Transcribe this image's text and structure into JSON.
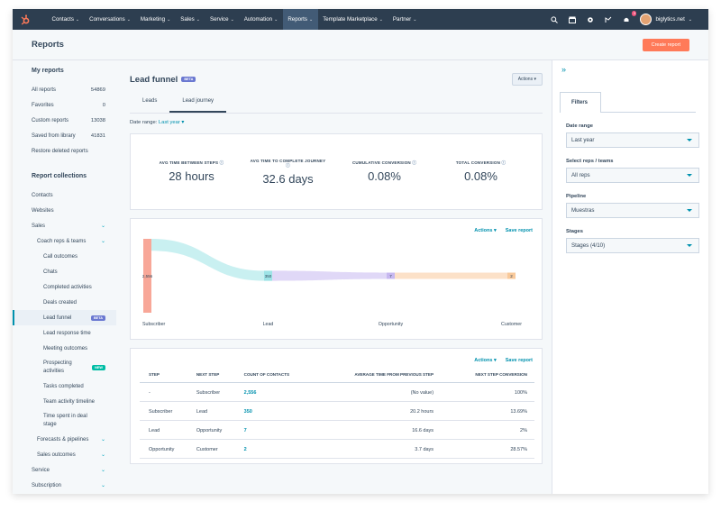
{
  "nav": {
    "items": [
      {
        "label": "Contacts",
        "active": false
      },
      {
        "label": "Conversations",
        "active": false
      },
      {
        "label": "Marketing",
        "active": false
      },
      {
        "label": "Sales",
        "active": false
      },
      {
        "label": "Service",
        "active": false
      },
      {
        "label": "Automation",
        "active": false
      },
      {
        "label": "Reports",
        "active": true
      },
      {
        "label": "Template Marketplace",
        "active": false
      },
      {
        "label": "Partner",
        "active": false
      }
    ],
    "notification_count": "3",
    "account": "biglytics.net"
  },
  "header": {
    "title": "Reports",
    "create_button": "Create report"
  },
  "sidebar": {
    "my_reports_heading": "My reports",
    "my_reports": [
      {
        "label": "All reports",
        "count": "54869"
      },
      {
        "label": "Favorites",
        "count": "0"
      },
      {
        "label": "Custom reports",
        "count": "13038"
      },
      {
        "label": "Saved from library",
        "count": "41831"
      },
      {
        "label": "Restore deleted reports",
        "count": ""
      }
    ],
    "collections_heading": "Report collections",
    "collections": {
      "contacts": "Contacts",
      "websites": "Websites",
      "sales": "Sales",
      "coach": "Coach reps & teams",
      "call_outcomes": "Call outcomes",
      "chats": "Chats",
      "completed_activities": "Completed activities",
      "deals_created": "Deals created",
      "lead_funnel": "Lead funnel",
      "lead_funnel_badge": "BETA",
      "lead_response_time": "Lead response time",
      "meeting_outcomes": "Meeting outcomes",
      "prospecting": "Prospecting activities",
      "prospecting_badge": "NEW",
      "tasks_completed": "Tasks completed",
      "team_activity": "Team activity timeline",
      "time_spent": "Time spent in deal stage",
      "forecasts": "Forecasts & pipelines",
      "sales_outcomes": "Sales outcomes",
      "service": "Service",
      "subscription": "Subscription"
    }
  },
  "main": {
    "title": "Lead funnel",
    "title_badge": "BETA",
    "actions": "Actions",
    "tabs": [
      {
        "label": "Leads",
        "active": false
      },
      {
        "label": "Lead journey",
        "active": true
      }
    ],
    "date_range_label": "Date range:",
    "date_range_value": "Last year",
    "stats": [
      {
        "label": "AVG TIME BETWEEN STEPS",
        "value": "28 hours"
      },
      {
        "label": "AVG TIME TO COMPLETE JOURNEY",
        "value": "32.6 days"
      },
      {
        "label": "CUMULATIVE CONVERSION",
        "value": "0.08%"
      },
      {
        "label": "TOTAL CONVERSION",
        "value": "0.08%"
      }
    ],
    "card_actions": "Actions",
    "save_report": "Save report",
    "table": {
      "headers": [
        "STEP",
        "NEXT STEP",
        "COUNT OF CONTACTS",
        "AVERAGE TIME FROM PREVIOUS STEP",
        "NEXT STEP CONVERSION"
      ],
      "rows": [
        [
          "-",
          "Subscriber",
          "2,556",
          "(No value)",
          "100%"
        ],
        [
          "Subscriber",
          "Lead",
          "350",
          "20.2 hours",
          "13.69%"
        ],
        [
          "Lead",
          "Opportunity",
          "7",
          "16.6 days",
          "2%"
        ],
        [
          "Opportunity",
          "Customer",
          "2",
          "3.7 days",
          "28.57%"
        ]
      ]
    }
  },
  "chart_data": {
    "type": "bar",
    "categories": [
      "Subscriber",
      "Lead",
      "Opportunity",
      "Customer"
    ],
    "values": [
      2556,
      350,
      7,
      2
    ],
    "value_labels": [
      "2,556",
      "350",
      "7",
      "2"
    ],
    "title": "",
    "xlabel": "",
    "ylabel": "",
    "colors": [
      "#f8a798",
      "#9de3e6",
      "#c7b8f0",
      "#f9c99a"
    ]
  },
  "filters": {
    "tab": "Filters",
    "fields": [
      {
        "label": "Date range",
        "value": "Last year"
      },
      {
        "label": "Select reps / teams",
        "value": "All reps"
      },
      {
        "label": "Pipeline",
        "value": "Muestras"
      },
      {
        "label": "Stages",
        "value": "Stages (4/10)"
      }
    ]
  }
}
